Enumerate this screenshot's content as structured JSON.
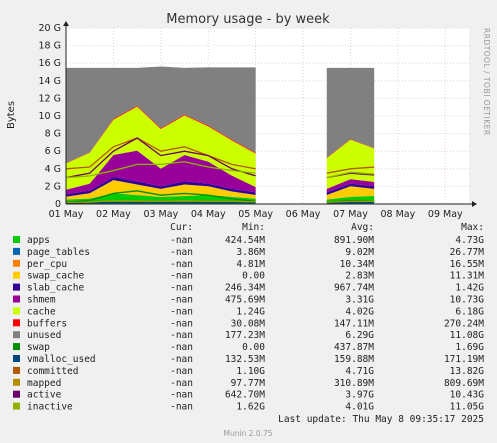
{
  "chart_data": {
    "type": "area",
    "title": "Memory usage - by week",
    "ylabel": "Bytes",
    "side_label": "RRDTOOL / TOBI OETIKER",
    "ylim_gb": [
      0,
      20
    ],
    "yticks": [
      "0",
      "2 G",
      "4 G",
      "6 G",
      "8 G",
      "10 G",
      "12 G",
      "14 G",
      "16 G",
      "18 G",
      "20 G"
    ],
    "xticks": [
      "01 May",
      "02 May",
      "03 May",
      "04 May",
      "05 May",
      "06 May",
      "07 May",
      "08 May",
      "09 May"
    ],
    "x": [
      "2025-05-01",
      "2025-05-01T12",
      "2025-05-02",
      "2025-05-02T12",
      "2025-05-03",
      "2025-05-03T12",
      "2025-05-04",
      "2025-05-04T12",
      "2025-05-05",
      "2025-05-05T12",
      "2025-05-06",
      "2025-05-06T12",
      "2025-05-07",
      "2025-05-07T12",
      "2025-05-08"
    ],
    "gaps": [
      [
        "2025-05-05T18",
        "2025-05-06T12"
      ],
      [
        "2025-05-07T18",
        "2025-05-08T09"
      ]
    ],
    "series": [
      {
        "name": "apps",
        "color": "#00cc00",
        "values": [
          0.5,
          0.6,
          1.2,
          1.0,
          0.8,
          0.9,
          1.0,
          0.8,
          0.6,
          null,
          null,
          0.5,
          0.8,
          0.9,
          null
        ]
      },
      {
        "name": "page_tables",
        "color": "#0066b3",
        "values": [
          0.01,
          0.01,
          0.01,
          0.01,
          0.01,
          0.01,
          0.01,
          0.01,
          0.01,
          null,
          null,
          0.01,
          0.01,
          0.01,
          null
        ]
      },
      {
        "name": "per_cpu",
        "color": "#ff8000",
        "values": [
          0.01,
          0.01,
          0.01,
          0.01,
          0.01,
          0.01,
          0.01,
          0.01,
          0.01,
          null,
          null,
          0.01,
          0.01,
          0.01,
          null
        ]
      },
      {
        "name": "swap_cache",
        "color": "#ffcc00",
        "values": [
          0.3,
          0.6,
          1.5,
          1.2,
          0.9,
          1.3,
          1.0,
          0.6,
          0.4,
          null,
          null,
          0.5,
          1.2,
          0.8,
          null
        ]
      },
      {
        "name": "slab_cache",
        "color": "#330099",
        "values": [
          0.3,
          0.3,
          0.35,
          0.35,
          0.3,
          0.35,
          0.3,
          0.3,
          0.3,
          null,
          null,
          0.3,
          0.3,
          0.3,
          null
        ]
      },
      {
        "name": "shmem",
        "color": "#990099",
        "values": [
          0.5,
          0.8,
          2.5,
          3.5,
          2.0,
          3.0,
          2.5,
          1.5,
          0.6,
          null,
          null,
          0.4,
          0.5,
          0.5,
          null
        ]
      },
      {
        "name": "cache",
        "color": "#ccff00",
        "values": [
          3.0,
          3.5,
          4.0,
          5.0,
          4.5,
          4.5,
          4.0,
          4.0,
          3.8,
          null,
          null,
          3.5,
          4.5,
          3.8,
          null
        ]
      },
      {
        "name": "buffers",
        "color": "#ff0000",
        "values": [
          0.05,
          0.05,
          0.1,
          0.1,
          0.1,
          0.1,
          0.1,
          0.1,
          0.1,
          null,
          null,
          0.05,
          0.05,
          0.05,
          null
        ]
      },
      {
        "name": "unused",
        "color": "#808080",
        "values": [
          10.8,
          9.6,
          5.8,
          4.3,
          7.0,
          5.3,
          6.6,
          8.2,
          9.7,
          null,
          null,
          10.2,
          8.1,
          9.1,
          null
        ]
      },
      {
        "name": "swap",
        "color": "#008f00",
        "values": [
          0.2,
          0.4,
          1.2,
          1.5,
          1.0,
          1.2,
          1.0,
          0.6,
          0.3,
          null,
          null,
          0.2,
          0.4,
          0.3,
          null
        ]
      },
      {
        "name": "vmalloc_used",
        "color": "#00487d",
        "values": [
          0.15,
          0.15,
          0.16,
          0.16,
          0.16,
          0.16,
          0.16,
          0.16,
          0.16,
          null,
          null,
          0.15,
          0.15,
          0.15,
          null
        ]
      },
      {
        "name": "committed",
        "color": "#b35a00",
        "values": [
          4.0,
          4.2,
          6.5,
          7.5,
          6.0,
          6.5,
          5.5,
          4.5,
          4.0,
          null,
          null,
          3.5,
          4.0,
          4.2,
          null
        ]
      },
      {
        "name": "mapped",
        "color": "#b38f00",
        "values": [
          0.2,
          0.2,
          0.4,
          0.35,
          0.3,
          0.4,
          0.3,
          0.3,
          0.25,
          null,
          null,
          0.2,
          0.3,
          0.3,
          null
        ]
      },
      {
        "name": "active",
        "color": "#6b006b",
        "values": [
          3.0,
          3.5,
          6.0,
          7.5,
          5.5,
          6.0,
          5.5,
          4.0,
          3.2,
          null,
          null,
          3.0,
          3.5,
          3.3,
          null
        ]
      },
      {
        "name": "inactive",
        "color": "#8fb300",
        "values": [
          3.0,
          3.2,
          3.8,
          4.5,
          4.5,
          4.8,
          4.2,
          3.8,
          3.5,
          null,
          null,
          3.0,
          3.6,
          3.4,
          null
        ]
      }
    ],
    "legend": {
      "headers": [
        "Cur:",
        "Min:",
        "Avg:",
        "Max:"
      ],
      "rows": [
        {
          "name": "apps",
          "color": "#00cc00",
          "cur": "-nan",
          "min": "424.54M",
          "avg": "891.90M",
          "max": "4.73G"
        },
        {
          "name": "page_tables",
          "color": "#0066b3",
          "cur": "-nan",
          "min": "3.86M",
          "avg": "9.02M",
          "max": "26.77M"
        },
        {
          "name": "per_cpu",
          "color": "#ff8000",
          "cur": "-nan",
          "min": "4.81M",
          "avg": "10.34M",
          "max": "16.55M"
        },
        {
          "name": "swap_cache",
          "color": "#ffcc00",
          "cur": "-nan",
          "min": "0.00",
          "avg": "2.83M",
          "max": "11.31M"
        },
        {
          "name": "slab_cache",
          "color": "#330099",
          "cur": "-nan",
          "min": "246.34M",
          "avg": "967.74M",
          "max": "1.42G"
        },
        {
          "name": "shmem",
          "color": "#990099",
          "cur": "-nan",
          "min": "475.69M",
          "avg": "3.31G",
          "max": "10.73G"
        },
        {
          "name": "cache",
          "color": "#ccff00",
          "cur": "-nan",
          "min": "1.24G",
          "avg": "4.02G",
          "max": "6.18G"
        },
        {
          "name": "buffers",
          "color": "#ff0000",
          "cur": "-nan",
          "min": "30.08M",
          "avg": "147.11M",
          "max": "270.24M"
        },
        {
          "name": "unused",
          "color": "#808080",
          "cur": "-nan",
          "min": "177.23M",
          "avg": "6.29G",
          "max": "11.08G"
        },
        {
          "name": "swap",
          "color": "#008f00",
          "cur": "-nan",
          "min": "0.00",
          "avg": "437.87M",
          "max": "1.69G"
        },
        {
          "name": "vmalloc_used",
          "color": "#00487d",
          "cur": "-nan",
          "min": "132.53M",
          "avg": "159.88M",
          "max": "171.19M"
        },
        {
          "name": "committed",
          "color": "#b35a00",
          "cur": "-nan",
          "min": "1.10G",
          "avg": "4.71G",
          "max": "13.82G"
        },
        {
          "name": "mapped",
          "color": "#b38f00",
          "cur": "-nan",
          "min": "97.77M",
          "avg": "310.89M",
          "max": "809.69M"
        },
        {
          "name": "active",
          "color": "#6b006b",
          "cur": "-nan",
          "min": "642.70M",
          "avg": "3.97G",
          "max": "10.43G"
        },
        {
          "name": "inactive",
          "color": "#8fb300",
          "cur": "-nan",
          "min": "1.62G",
          "avg": "4.01G",
          "max": "11.05G"
        }
      ]
    },
    "last_update": "Last update: Thu May  8 09:35:17 2025",
    "footer": "Munin 2.0.75"
  }
}
